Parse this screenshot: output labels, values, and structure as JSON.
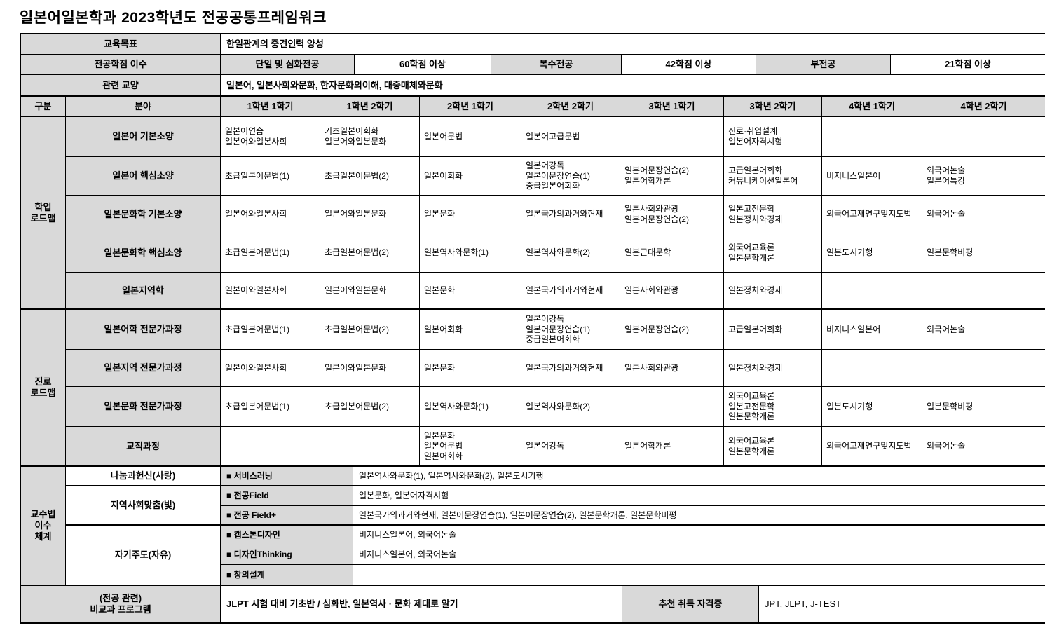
{
  "title": "일본어일본학과 2023학년도 전공공통프레임워크",
  "colors": {
    "header_bg": "#d9d9d9",
    "border": "#000000",
    "background": "#ffffff"
  },
  "info": {
    "edu_goal_label": "교육목표",
    "edu_goal_value": "한일관계의 중견인력 양성",
    "credits_label": "전공학점 이수",
    "credits_cells": [
      {
        "label": "단일 및 심화전공",
        "value": "60학점 이상"
      },
      {
        "label": "복수전공",
        "value": "42학점 이상"
      },
      {
        "label": "부전공",
        "value": "21학점 이상"
      }
    ],
    "liberal_label": "관련 교양",
    "liberal_value": "일본어, 일본사회와문화, 한자문화의이해, 대중매체와문화"
  },
  "grid": {
    "headers": [
      "구분",
      "분야",
      "1학년 1학기",
      "1학년 2학기",
      "2학년 1학기",
      "2학년 2학기",
      "3학년 1학기",
      "3학년 2학기",
      "4학년 1학기",
      "4학년 2학기"
    ],
    "groups": [
      {
        "label": "학업\n로드맵"
      },
      {
        "label": "진로\n로드맵"
      }
    ],
    "rows": [
      {
        "field": "일본어 기본소양",
        "cells": [
          "일본어연습\n일본어와일본사회",
          "기초일본어회화\n일본어와일본문화",
          "일본어문법",
          "일본어고급문법",
          "",
          "진로·취업설계\n일본어자격시험",
          "",
          ""
        ]
      },
      {
        "field": "일본어 핵심소양",
        "cells": [
          "초급일본어문법(1)",
          "초급일본어문법(2)",
          "일본어회화",
          "일본어강독\n일본어문장연습(1)\n중급일본어회화",
          "일본어문장연습(2)\n일본어학개론",
          "고급일본어회화\n커뮤니케이션일본어",
          "비지니스일본어",
          "외국어논술\n일본어특강"
        ]
      },
      {
        "field": "일본문화학 기본소양",
        "cells": [
          "일본어와일본사회",
          "일본어와일본문화",
          "일본문화",
          "일본국가의과거와현재",
          "일본사회와관광\n일본어문장연습(2)",
          "일본고전문학\n일본정치와경제",
          "외국어교재연구및지도법",
          "외국어논술"
        ]
      },
      {
        "field": "일본문화학 핵심소양",
        "cells": [
          "초급일본어문법(1)",
          "초급일본어문법(2)",
          "일본역사와문화(1)",
          "일본역사와문화(2)",
          "일본근대문학",
          "외국어교육론\n일본문학개론",
          "일본도시기행",
          "일본문학비평"
        ]
      },
      {
        "field": "일본지역학",
        "cells": [
          "일본어와일본사회",
          "일본어와일본문화",
          "일본문화",
          "일본국가의과거와현재",
          "일본사회와관광",
          "일본정치와경제",
          "",
          ""
        ]
      },
      {
        "field": "일본어학 전문가과정",
        "cells": [
          "초급일본어문법(1)",
          "초급일본어문법(2)",
          "일본어회화",
          "일본어강독\n일본어문장연습(1)\n중급일본어회화",
          "일본어문장연습(2)",
          "고급일본어회화",
          "비지니스일본어",
          "외국어논술"
        ]
      },
      {
        "field": "일본지역 전문가과정",
        "cells": [
          "일본어와일본사회",
          "일본어와일본문화",
          "일본문화",
          "일본국가의과거와현재",
          "일본사회와관광",
          "일본정치와경제",
          "",
          ""
        ]
      },
      {
        "field": "일본문화 전문가과정",
        "cells": [
          "초급일본어문법(1)",
          "초급일본어문법(2)",
          "일본역사와문화(1)",
          "일본역사와문화(2)",
          "",
          "외국어교육론\n일본고전문학\n일본문학개론",
          "일본도시기행",
          "일본문학비평"
        ]
      },
      {
        "field": "교직과정",
        "cells": [
          "",
          "",
          "일본문화\n일본어문법\n일본어회화",
          "일본어강독",
          "일본어학개론",
          "외국어교육론\n일본문학개론",
          "외국어교재연구및지도법",
          "외국어논술"
        ]
      }
    ]
  },
  "pedagogy": {
    "group_label": "교수법\n이수\n체계",
    "rows": [
      {
        "category": "나눔과헌신(사랑)",
        "method": "■ 서비스러닝",
        "courses": "일본역사와문화(1), 일본역사와문화(2), 일본도시기행"
      },
      {
        "category": "지역사회맞춤(빛)",
        "method": "■ 전공Field",
        "courses": "일본문화, 일본어자격시험"
      },
      {
        "method": "■ 전공 Field+",
        "courses": "일본국가의과거와현재, 일본어문장연습(1), 일본어문장연습(2), 일본문학개론, 일본문학비평"
      },
      {
        "category": "자기주도(자유)",
        "method": "■ 캡스톤디자인",
        "courses": "비지니스일본어, 외국어논술"
      },
      {
        "method": "■ 디자인Thinking",
        "courses": "비지니스일본어, 외국어논술"
      },
      {
        "method": "■ 창의설계",
        "courses": ""
      }
    ]
  },
  "footer": {
    "program_label": "(전공 관련)\n비교과 프로그램",
    "program_value": "JLPT 시험 대비 기초반 / 심화반, 일본역사 · 문화 제대로 알기",
    "cert_label": "추천 취득 자격증",
    "cert_value": "JPT, JLPT, J-TEST"
  }
}
